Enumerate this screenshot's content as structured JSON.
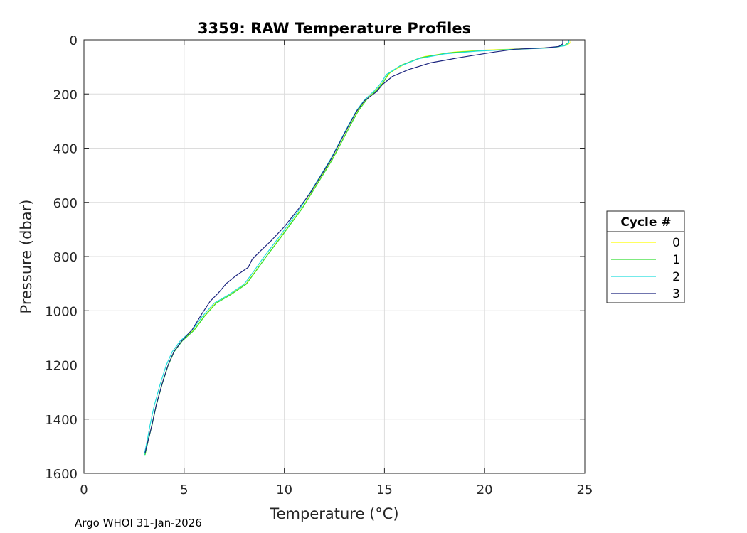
{
  "chart_data": {
    "type": "line",
    "title": "3359: RAW Temperature Profiles",
    "xlabel": "Temperature (°C)",
    "ylabel": "Pressure (dbar)",
    "xlim": [
      0,
      25
    ],
    "ylim": [
      0,
      1600
    ],
    "y_reversed": true,
    "grid": true,
    "xticks": [
      0,
      5,
      10,
      15,
      20,
      25
    ],
    "yticks": [
      0,
      200,
      400,
      600,
      800,
      1000,
      1200,
      1400,
      1600
    ],
    "legend": {
      "title": "Cycle #",
      "placement": "outside-right"
    },
    "series": [
      {
        "name": "0",
        "color": "#ffff00",
        "points": [
          [
            24.3,
            0
          ],
          [
            24.3,
            10
          ],
          [
            24.1,
            20
          ],
          [
            23.5,
            28
          ],
          [
            22,
            33
          ],
          [
            20,
            38
          ],
          [
            18.5,
            45
          ],
          [
            17,
            62
          ],
          [
            16,
            90
          ],
          [
            15.3,
            120
          ],
          [
            14.9,
            160
          ],
          [
            14.6,
            185
          ],
          [
            14.1,
            220
          ],
          [
            13.7,
            260
          ],
          [
            13.4,
            300
          ],
          [
            12.9,
            370
          ],
          [
            12.4,
            440
          ],
          [
            11.9,
            500
          ],
          [
            11.4,
            560
          ],
          [
            10.9,
            620
          ],
          [
            10.3,
            680
          ],
          [
            9.7,
            740
          ],
          [
            9.1,
            800
          ],
          [
            8.6,
            850
          ],
          [
            8.1,
            900
          ],
          [
            7.3,
            940
          ],
          [
            6.6,
            970
          ],
          [
            6.0,
            1020
          ],
          [
            5.5,
            1070
          ],
          [
            4.9,
            1110
          ],
          [
            4.5,
            1150
          ],
          [
            4.2,
            1200
          ],
          [
            3.9,
            1270
          ],
          [
            3.6,
            1350
          ],
          [
            3.4,
            1420
          ],
          [
            3.2,
            1480
          ],
          [
            3.05,
            1530
          ]
        ]
      },
      {
        "name": "1",
        "color": "#33dd33",
        "points": [
          [
            24.2,
            0
          ],
          [
            24.2,
            10
          ],
          [
            24.0,
            20
          ],
          [
            23.4,
            29
          ],
          [
            21.8,
            34
          ],
          [
            19.8,
            40
          ],
          [
            18.2,
            48
          ],
          [
            16.8,
            66
          ],
          [
            15.8,
            95
          ],
          [
            15.2,
            125
          ],
          [
            14.9,
            162
          ],
          [
            14.6,
            187
          ],
          [
            14.1,
            222
          ],
          [
            13.7,
            262
          ],
          [
            13.4,
            302
          ],
          [
            12.9,
            372
          ],
          [
            12.4,
            442
          ],
          [
            11.9,
            502
          ],
          [
            11.4,
            562
          ],
          [
            10.9,
            622
          ],
          [
            10.3,
            682
          ],
          [
            9.7,
            742
          ],
          [
            9.1,
            800
          ],
          [
            8.6,
            852
          ],
          [
            8.1,
            902
          ],
          [
            7.3,
            942
          ],
          [
            6.6,
            972
          ],
          [
            6.0,
            1022
          ],
          [
            5.5,
            1072
          ],
          [
            4.9,
            1112
          ],
          [
            4.5,
            1152
          ],
          [
            4.2,
            1202
          ],
          [
            3.9,
            1272
          ],
          [
            3.6,
            1352
          ],
          [
            3.4,
            1422
          ],
          [
            3.2,
            1482
          ],
          [
            3.05,
            1532
          ]
        ]
      },
      {
        "name": "2",
        "color": "#22dddd",
        "points": [
          [
            24.2,
            0
          ],
          [
            24.2,
            12
          ],
          [
            24.0,
            22
          ],
          [
            23.3,
            30
          ],
          [
            21.6,
            35
          ],
          [
            19.6,
            42
          ],
          [
            18.0,
            52
          ],
          [
            16.7,
            70
          ],
          [
            15.7,
            100
          ],
          [
            15.1,
            128
          ],
          [
            14.8,
            162
          ],
          [
            14.5,
            188
          ],
          [
            14.0,
            222
          ],
          [
            13.6,
            262
          ],
          [
            13.3,
            302
          ],
          [
            12.8,
            372
          ],
          [
            12.3,
            442
          ],
          [
            11.8,
            502
          ],
          [
            11.3,
            562
          ],
          [
            10.8,
            622
          ],
          [
            10.2,
            682
          ],
          [
            9.6,
            742
          ],
          [
            9.0,
            800
          ],
          [
            8.5,
            852
          ],
          [
            8.0,
            902
          ],
          [
            7.2,
            942
          ],
          [
            6.5,
            972
          ],
          [
            5.9,
            1022
          ],
          [
            5.4,
            1072
          ],
          [
            4.8,
            1112
          ],
          [
            4.4,
            1152
          ],
          [
            4.1,
            1202
          ],
          [
            3.8,
            1272
          ],
          [
            3.5,
            1352
          ],
          [
            3.3,
            1422
          ],
          [
            3.15,
            1482
          ],
          [
            3.0,
            1535
          ]
        ]
      },
      {
        "name": "3",
        "color": "#1a237e",
        "points": [
          [
            23.9,
            0
          ],
          [
            23.9,
            15
          ],
          [
            23.7,
            25
          ],
          [
            23.0,
            30
          ],
          [
            21.5,
            35
          ],
          [
            20.5,
            45
          ],
          [
            18.8,
            65
          ],
          [
            17.3,
            85
          ],
          [
            16.2,
            110
          ],
          [
            15.4,
            135
          ],
          [
            14.9,
            165
          ],
          [
            14.6,
            192
          ],
          [
            14.0,
            225
          ],
          [
            13.6,
            265
          ],
          [
            13.3,
            305
          ],
          [
            12.8,
            375
          ],
          [
            12.3,
            445
          ],
          [
            11.8,
            505
          ],
          [
            11.3,
            565
          ],
          [
            10.7,
            625
          ],
          [
            10.0,
            690
          ],
          [
            9.3,
            745
          ],
          [
            8.8,
            780
          ],
          [
            8.4,
            810
          ],
          [
            8.2,
            840
          ],
          [
            7.6,
            870
          ],
          [
            7.1,
            900
          ],
          [
            6.7,
            935
          ],
          [
            6.3,
            965
          ],
          [
            5.9,
            1010
          ],
          [
            5.4,
            1070
          ],
          [
            4.9,
            1110
          ],
          [
            4.5,
            1150
          ],
          [
            4.2,
            1200
          ],
          [
            3.9,
            1270
          ],
          [
            3.6,
            1350
          ],
          [
            3.4,
            1420
          ],
          [
            3.2,
            1480
          ],
          [
            3.05,
            1525
          ]
        ]
      }
    ]
  },
  "footer": {
    "text": "Argo WHOI 31-Jan-2026"
  }
}
